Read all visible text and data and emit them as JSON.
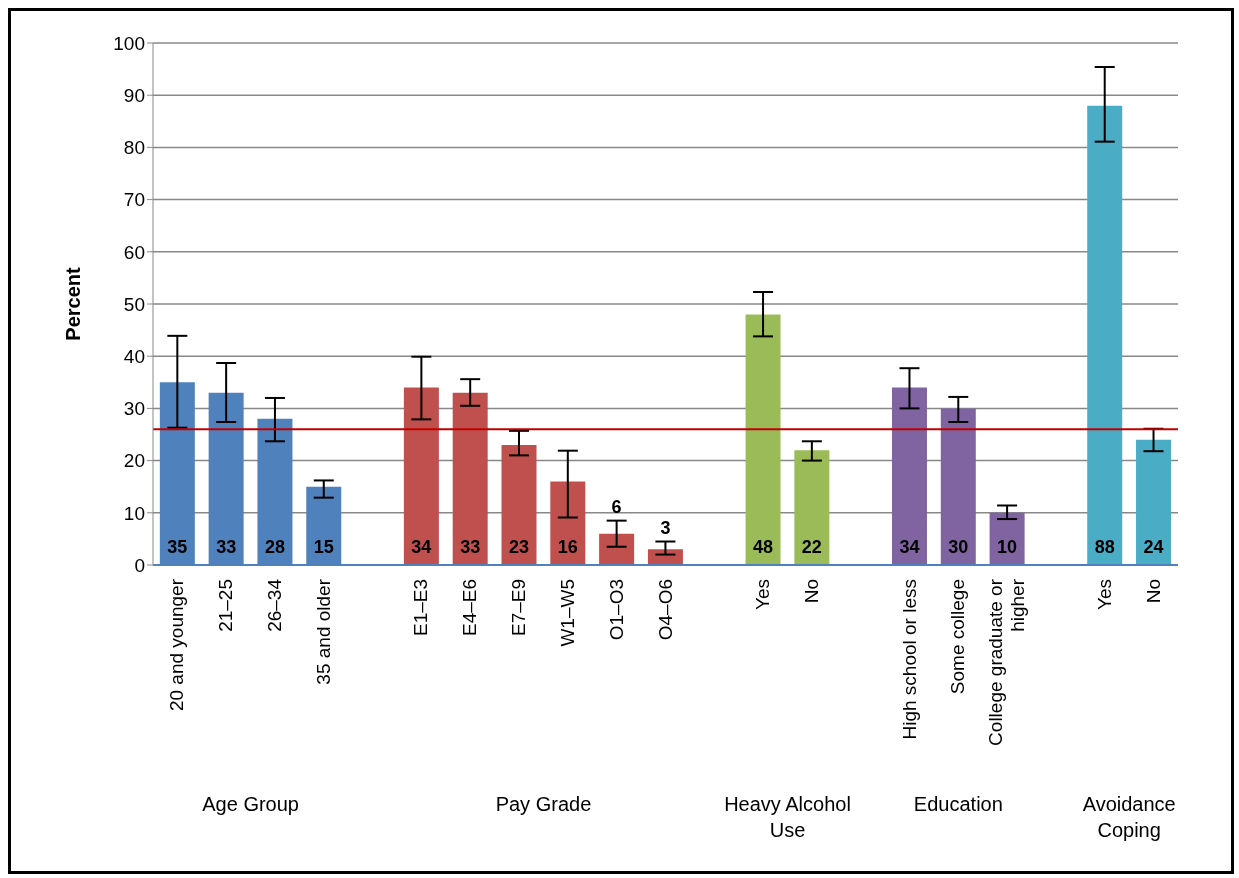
{
  "chart_data": {
    "type": "bar",
    "ylabel": "Percent",
    "categories": [
      "20 and younger",
      "21–25",
      "26–34",
      "35 and older",
      null,
      "E1–E3",
      "E4–E6",
      "E7–E9",
      "W1–W5",
      "O1–O3",
      "O4–O6",
      null,
      "Yes",
      "No",
      null,
      "High school or less",
      "Some college",
      "College graduate or higher",
      null,
      "Yes",
      "No"
    ],
    "values": [
      35,
      33,
      28,
      15,
      null,
      34,
      33,
      23,
      16,
      6,
      3,
      null,
      48,
      22,
      null,
      34,
      30,
      10,
      null,
      88,
      24
    ],
    "colors": [
      "#4f81bd",
      "#4f81bd",
      "#4f81bd",
      "#4f81bd",
      null,
      "#c0504d",
      "#c0504d",
      "#c0504d",
      "#c0504d",
      "#c0504d",
      "#c0504d",
      null,
      "#9bbb59",
      "#9bbb59",
      null,
      "#8064a2",
      "#8064a2",
      "#8064a2",
      null,
      "#4bacc6",
      "#4bacc6"
    ],
    "errors": [
      [
        26.3,
        43.9
      ],
      [
        27.4,
        38.7
      ],
      [
        23.7,
        32
      ],
      [
        12.9,
        16.2
      ],
      null,
      [
        27.9,
        39.9
      ],
      [
        30.5,
        35.6
      ],
      [
        21,
        25.7
      ],
      [
        9.1,
        21.9
      ],
      [
        3.5,
        8.5
      ],
      [
        2,
        4.5
      ],
      null,
      [
        43.8,
        52.3
      ],
      [
        20,
        23.7
      ],
      null,
      [
        30,
        37.7
      ],
      [
        27.4,
        32.2
      ],
      [
        8.8,
        11.4
      ],
      null,
      [
        81.1,
        95.4
      ],
      [
        21.8,
        26.1
      ]
    ],
    "data_labels": true,
    "ylim": [
      0,
      100
    ],
    "yticks": [
      0,
      10,
      20,
      30,
      40,
      50,
      60,
      70,
      80,
      90,
      100
    ],
    "grid": "y",
    "ref_lines": [
      {
        "axis": "y",
        "value": 26,
        "color": "#c00000"
      }
    ],
    "annotations": [
      "Age Group",
      "Pay Grade",
      "Heavy Alcohol Use",
      "Education",
      "Avoidance Coping"
    ]
  }
}
